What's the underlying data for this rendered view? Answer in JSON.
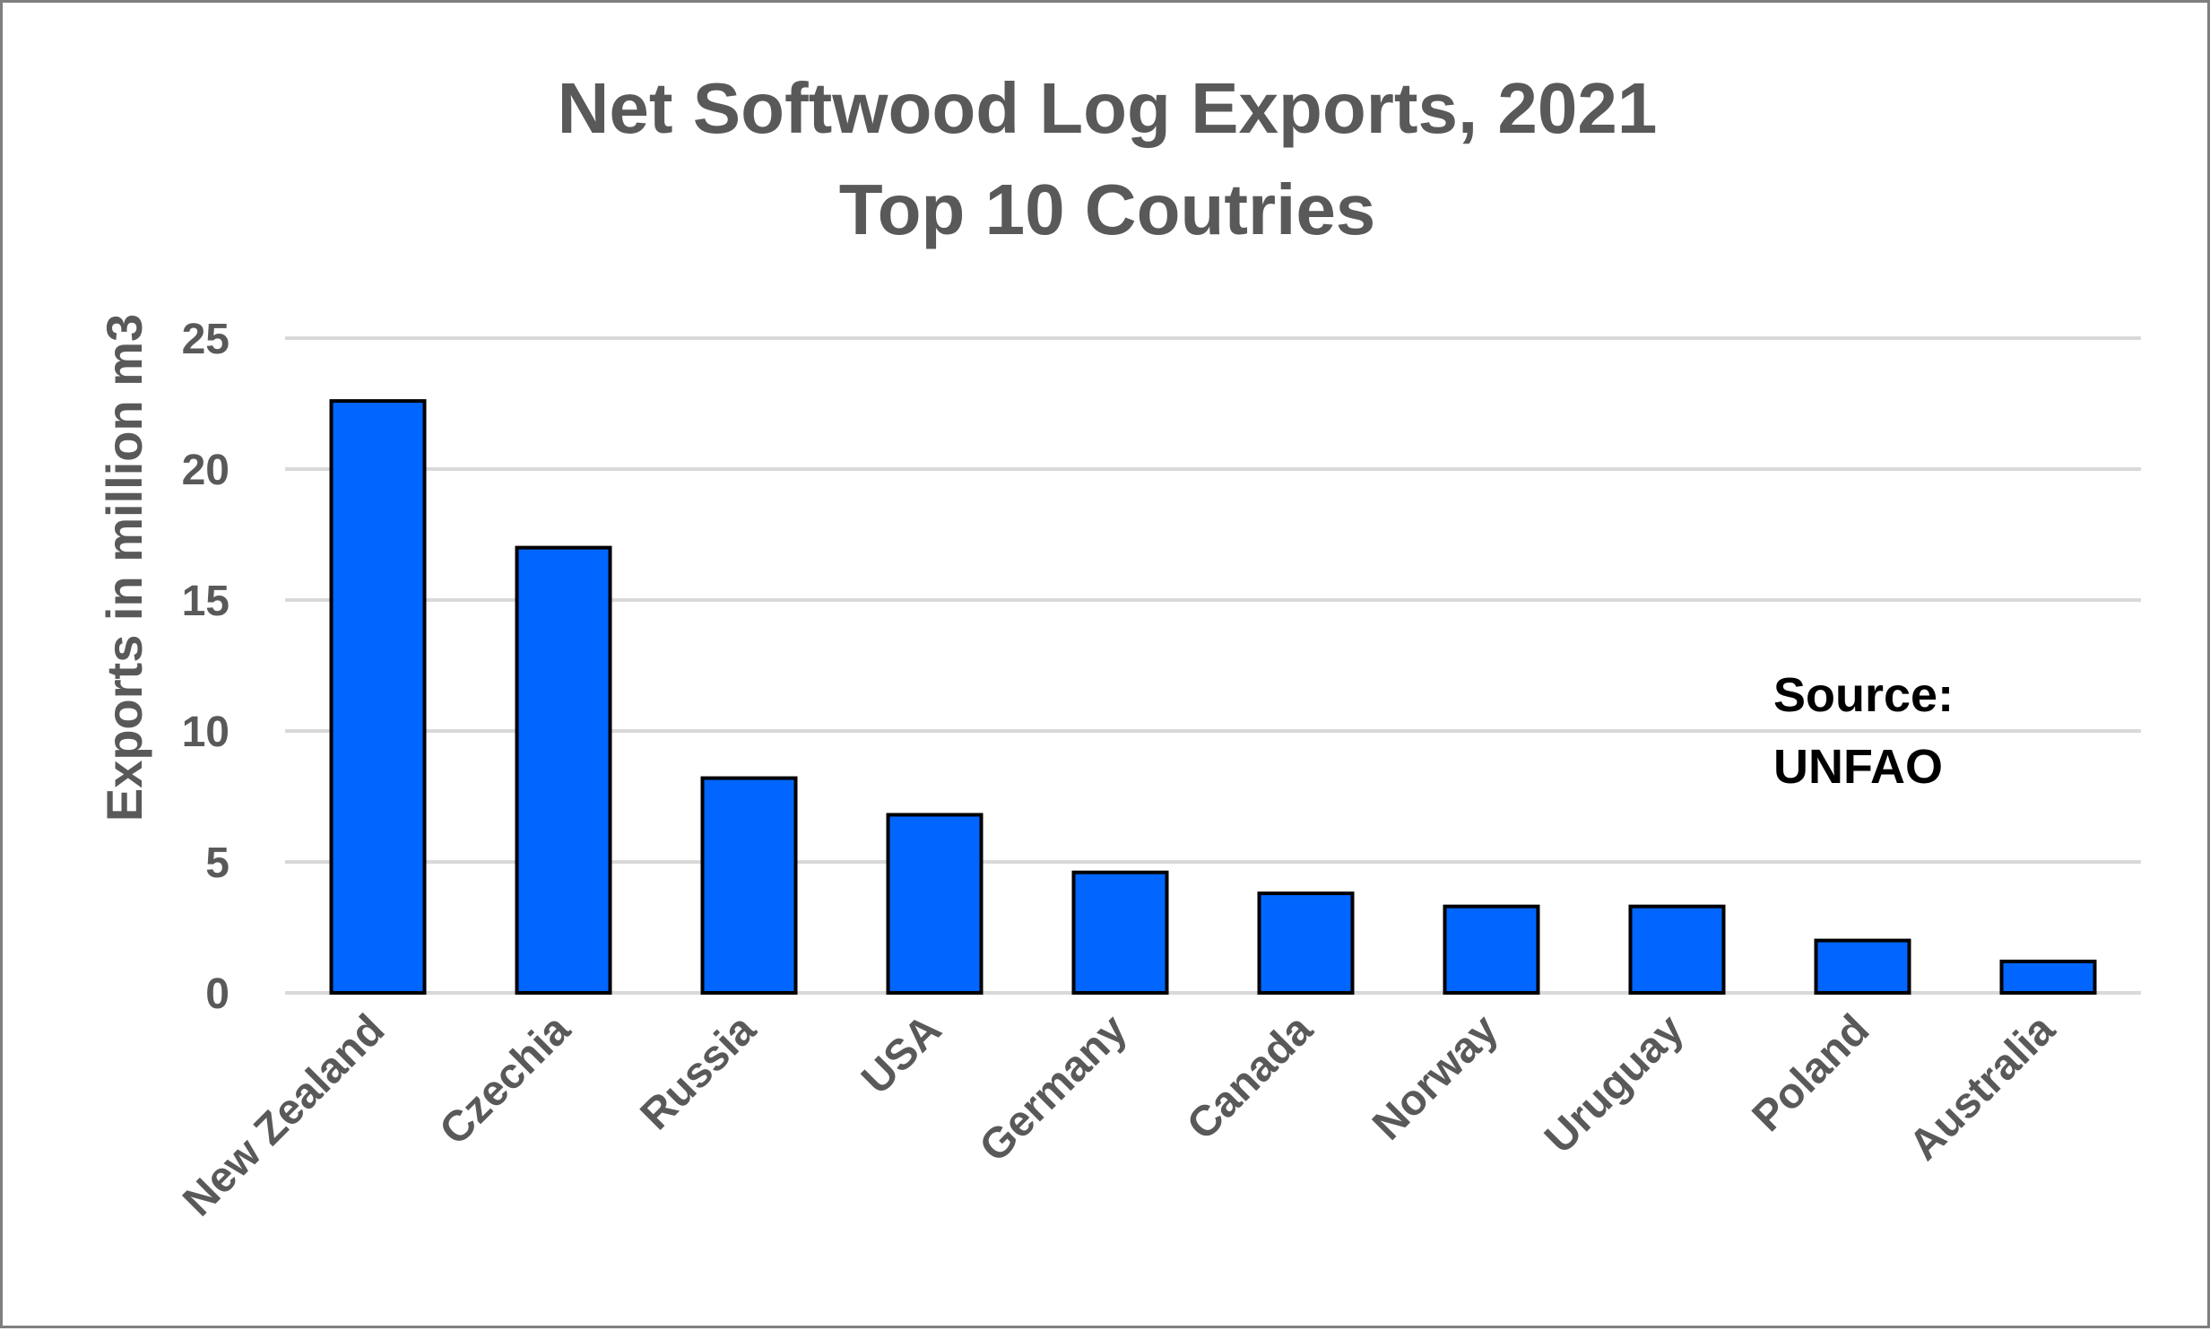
{
  "chart_data": {
    "type": "bar",
    "title_lines": [
      "Net Softwood Log Exports, 2021",
      "Top 10 Coutries"
    ],
    "ylabel": "Exports in million m3",
    "xlabel": "",
    "categories": [
      "New Zealand",
      "Czechia",
      "Russia",
      "USA",
      "Germany",
      "Canada",
      "Norway",
      "Uruguay",
      "Poland",
      "Australia"
    ],
    "values": [
      22.6,
      17.0,
      8.2,
      6.8,
      4.6,
      3.8,
      3.3,
      3.3,
      2.0,
      1.2
    ],
    "ylim": [
      0,
      25
    ],
    "yticks": [
      "0",
      "5",
      "10",
      "15",
      "20",
      "25"
    ],
    "grid": true,
    "legend": "none",
    "annotation_lines": [
      "Source:",
      "UNFAO"
    ],
    "colors": {
      "bar_fill": "#0066FF",
      "bar_stroke": "#000000",
      "gridline": "#D9D9D9",
      "text": "#595959",
      "annotation": "#000000",
      "frame_border": "#7F7F7F"
    }
  }
}
